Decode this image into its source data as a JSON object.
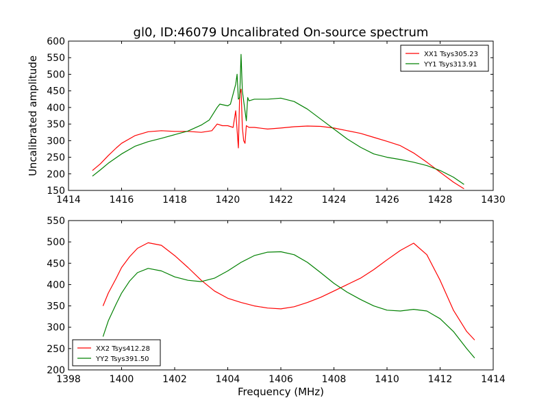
{
  "figure": {
    "title": "gl0, ID:46079 Uncalibrated On-source spectrum",
    "xlabel": "Frequency (MHz)"
  },
  "chart_data": [
    {
      "type": "line",
      "title": "gl0, ID:46079 Uncalibrated On-source spectrum",
      "xlabel": "",
      "ylabel": "Uncalibrated amplitude",
      "xlim": [
        1414,
        1430
      ],
      "ylim": [
        150,
        600
      ],
      "xticks": [
        1414,
        1416,
        1418,
        1420,
        1422,
        1424,
        1426,
        1428,
        1430
      ],
      "yticks": [
        150,
        200,
        250,
        300,
        350,
        400,
        450,
        500,
        550,
        600
      ],
      "legend_position": "top-right",
      "grid": false,
      "series": [
        {
          "name": "XX1 Tsys305.23",
          "color": "#ff0000",
          "x": [
            1414.9,
            1415.2,
            1415.5,
            1415.8,
            1416.0,
            1416.5,
            1417.0,
            1417.5,
            1418.0,
            1418.5,
            1419.0,
            1419.4,
            1419.6,
            1419.8,
            1420.0,
            1420.2,
            1420.3,
            1420.4,
            1420.45,
            1420.5,
            1420.55,
            1420.6,
            1420.65,
            1420.7,
            1420.8,
            1421.0,
            1421.5,
            1422.0,
            1422.5,
            1423.0,
            1423.5,
            1424.0,
            1424.5,
            1425.0,
            1425.5,
            1426.0,
            1426.5,
            1427.0,
            1427.5,
            1428.0,
            1428.5,
            1428.9
          ],
          "y": [
            210,
            230,
            255,
            278,
            292,
            315,
            327,
            330,
            328,
            328,
            325,
            330,
            350,
            345,
            345,
            340,
            390,
            278,
            440,
            455,
            340,
            300,
            292,
            345,
            340,
            340,
            335,
            338,
            342,
            344,
            343,
            338,
            330,
            322,
            310,
            298,
            285,
            263,
            235,
            205,
            175,
            155
          ]
        },
        {
          "name": "YY1 Tsys313.91",
          "color": "#008000",
          "x": [
            1414.9,
            1415.2,
            1415.5,
            1416.0,
            1416.5,
            1417.0,
            1417.5,
            1418.0,
            1418.5,
            1419.0,
            1419.3,
            1419.6,
            1419.7,
            1420.0,
            1420.1,
            1420.3,
            1420.35,
            1420.4,
            1420.45,
            1420.5,
            1420.55,
            1420.6,
            1420.7,
            1420.75,
            1420.8,
            1421.0,
            1421.5,
            1422.0,
            1422.5,
            1423.0,
            1423.5,
            1424.0,
            1424.5,
            1425.0,
            1425.5,
            1426.0,
            1426.5,
            1427.0,
            1427.5,
            1428.0,
            1428.5,
            1428.9
          ],
          "y": [
            193,
            212,
            232,
            260,
            283,
            297,
            307,
            318,
            329,
            347,
            362,
            400,
            410,
            405,
            410,
            470,
            500,
            425,
            430,
            560,
            450,
            420,
            360,
            430,
            420,
            425,
            425,
            428,
            418,
            395,
            365,
            335,
            305,
            280,
            260,
            250,
            243,
            235,
            225,
            210,
            190,
            168
          ]
        }
      ]
    },
    {
      "type": "line",
      "title": "",
      "xlabel": "Frequency (MHz)",
      "ylabel": "",
      "xlim": [
        1398,
        1414
      ],
      "ylim": [
        200,
        550
      ],
      "xticks": [
        1398,
        1400,
        1402,
        1404,
        1406,
        1408,
        1410,
        1412,
        1414
      ],
      "yticks": [
        200,
        250,
        300,
        350,
        400,
        450,
        500,
        550
      ],
      "legend_position": "bottom-left",
      "grid": false,
      "series": [
        {
          "name": "XX2 Tsys412.28",
          "color": "#ff0000",
          "x": [
            1399.3,
            1399.5,
            1399.8,
            1400.0,
            1400.3,
            1400.6,
            1401.0,
            1401.5,
            1402.0,
            1402.5,
            1403.0,
            1403.5,
            1404.0,
            1404.5,
            1405.0,
            1405.5,
            1406.0,
            1406.5,
            1407.0,
            1407.5,
            1408.0,
            1408.5,
            1409.0,
            1409.5,
            1410.0,
            1410.5,
            1411.0,
            1411.5,
            1412.0,
            1412.5,
            1413.0,
            1413.3
          ],
          "y": [
            350,
            380,
            415,
            440,
            465,
            485,
            498,
            492,
            468,
            440,
            410,
            385,
            368,
            358,
            350,
            345,
            343,
            348,
            358,
            370,
            385,
            400,
            415,
            435,
            458,
            480,
            497,
            470,
            410,
            340,
            290,
            270
          ]
        },
        {
          "name": "YY2 Tsys391.50",
          "color": "#008000",
          "x": [
            1399.3,
            1399.5,
            1399.8,
            1400.0,
            1400.3,
            1400.6,
            1401.0,
            1401.5,
            1402.0,
            1402.5,
            1403.0,
            1403.5,
            1404.0,
            1404.5,
            1405.0,
            1405.5,
            1406.0,
            1406.5,
            1407.0,
            1407.5,
            1408.0,
            1408.5,
            1409.0,
            1409.5,
            1410.0,
            1410.5,
            1411.0,
            1411.5,
            1412.0,
            1412.5,
            1413.0,
            1413.3
          ],
          "y": [
            278,
            315,
            355,
            380,
            408,
            428,
            438,
            432,
            418,
            410,
            407,
            415,
            432,
            452,
            468,
            476,
            477,
            470,
            452,
            428,
            403,
            382,
            365,
            350,
            340,
            338,
            342,
            338,
            320,
            290,
            250,
            228
          ]
        }
      ]
    }
  ]
}
